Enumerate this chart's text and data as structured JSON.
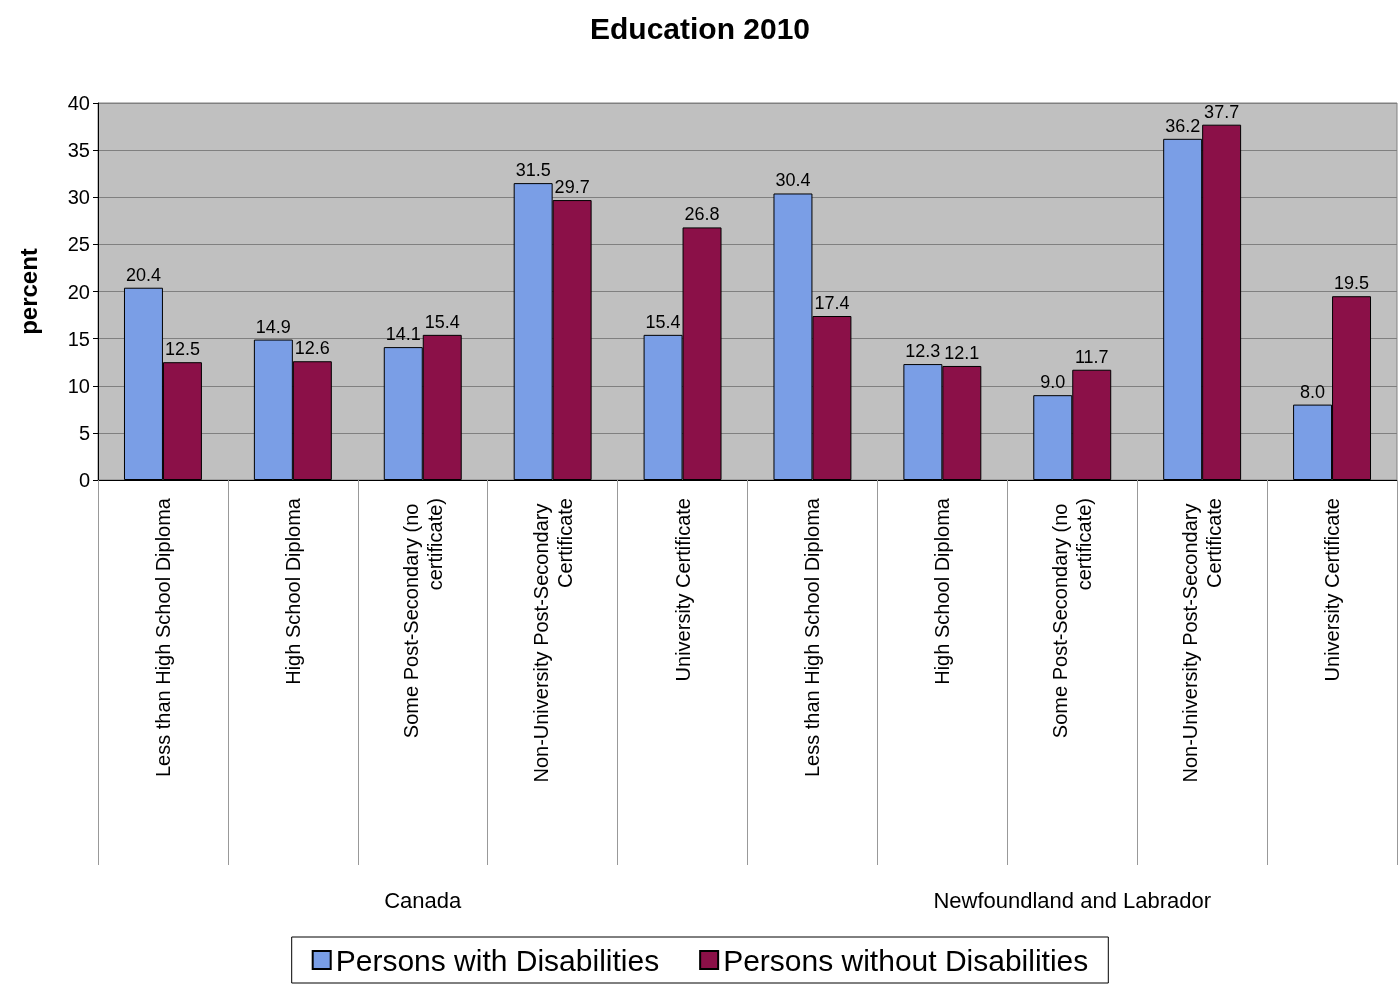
{
  "chart_data": {
    "type": "bar",
    "title": "Education 2010",
    "ylabel": "percent",
    "categories": [
      "Less than High School Diploma",
      "High School Diploma",
      "Some Post-Secondary (no certificate)",
      "Non-University Post-Secondary Certificate",
      "University Certificate",
      "Less than High School Diploma",
      "High School Diploma",
      "Some Post-Secondary (no certificate)",
      "Non-University Post-Secondary Certificate",
      "University Certificate"
    ],
    "series": [
      {
        "name": "Persons with Disabilities",
        "color": "#7a9ee6",
        "values": [
          20.4,
          14.9,
          14.1,
          31.5,
          15.4,
          30.4,
          12.3,
          9.0,
          36.2,
          8.0
        ],
        "value_labels": [
          "20.4",
          "14.9",
          "14.1",
          "31.5",
          "15.4",
          "30.4",
          "12.3",
          "9.0",
          "36.2",
          "8.0"
        ]
      },
      {
        "name": "Persons without Disabilities",
        "color": "#8b1048",
        "values": [
          12.5,
          12.6,
          15.4,
          29.7,
          26.8,
          17.4,
          12.1,
          11.7,
          37.7,
          19.5
        ],
        "value_labels": [
          "12.5",
          "12.6",
          "15.4",
          "29.7",
          "26.8",
          "17.4",
          "12.1",
          "11.7",
          "37.7",
          "19.5"
        ]
      }
    ],
    "ylim": [
      0,
      40
    ],
    "yticks": [
      0,
      5,
      10,
      15,
      20,
      25,
      30,
      35,
      40
    ],
    "grid": "y",
    "legend": "bottom",
    "annotations": [
      "Canada",
      "Newfoundland and Labrador"
    ]
  }
}
